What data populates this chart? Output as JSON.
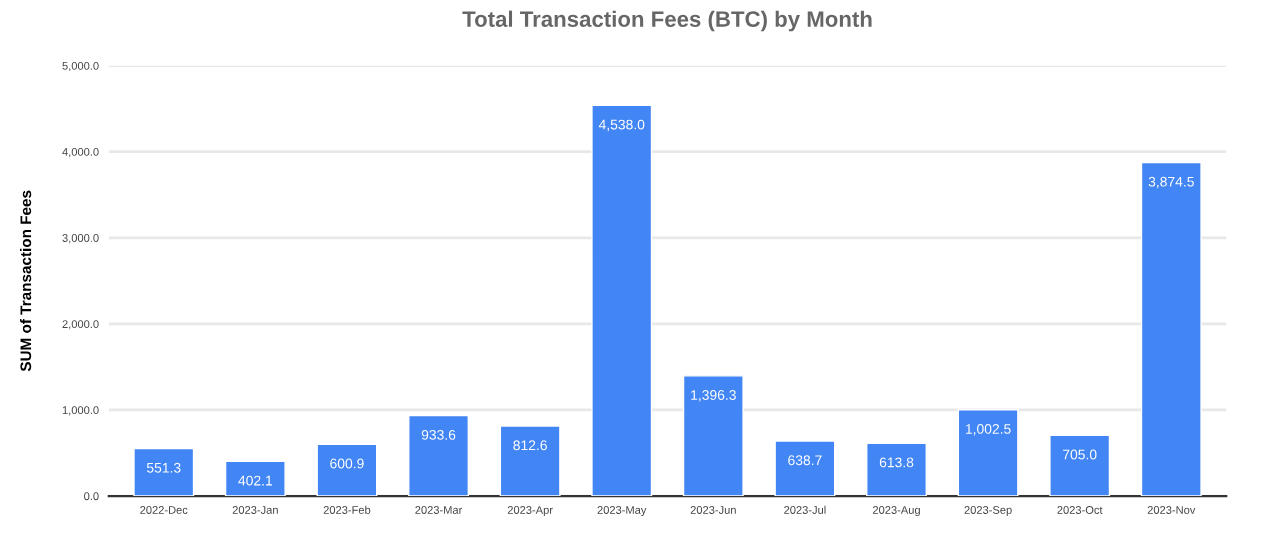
{
  "chart_data": {
    "type": "bar",
    "title": "Total Transaction Fees (BTC) by Month",
    "ylabel": "SUM of Transaction Fees",
    "categories": [
      "2022-Dec",
      "2023-Jan",
      "2023-Feb",
      "2023-Mar",
      "2023-Apr",
      "2023-May",
      "2023-Jun",
      "2023-Jul",
      "2023-Aug",
      "2023-Sep",
      "2023-Oct",
      "2023-Nov"
    ],
    "values": [
      551.3,
      402.1,
      600.9,
      933.6,
      812.6,
      4538.0,
      1396.3,
      638.7,
      613.8,
      1002.5,
      705.0,
      3874.5
    ],
    "value_labels": [
      "551.3",
      "402.1",
      "600.9",
      "933.6",
      "812.6",
      "4,538.0",
      "1,396.3",
      "638.7",
      "613.8",
      "1,002.5",
      "705.0",
      "3,874.5"
    ],
    "color": "#4285f4",
    "ylim": [
      0,
      5000
    ],
    "yticks": [
      {
        "value": 0,
        "label": "0.0"
      },
      {
        "value": 1000,
        "label": "1,000.0"
      },
      {
        "value": 2000,
        "label": "2,000.0"
      },
      {
        "value": 3000,
        "label": "3,000.0"
      },
      {
        "value": 4000,
        "label": "4,000.0"
      },
      {
        "value": 5000,
        "label": "5,000.0"
      }
    ],
    "grid": "y"
  }
}
